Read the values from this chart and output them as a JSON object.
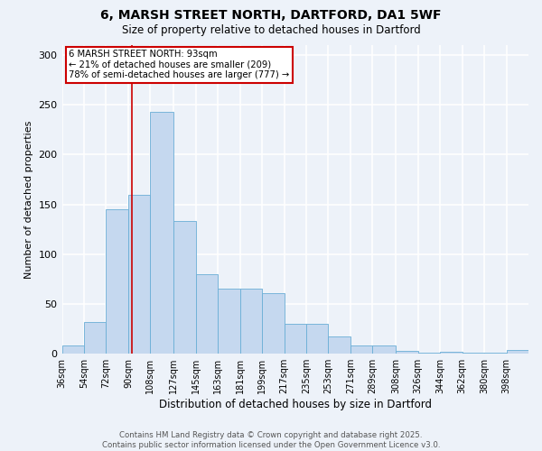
{
  "title_line1": "6, MARSH STREET NORTH, DARTFORD, DA1 5WF",
  "title_line2": "Size of property relative to detached houses in Dartford",
  "xlabel": "Distribution of detached houses by size in Dartford",
  "ylabel": "Number of detached properties",
  "bin_edges": [
    36,
    54,
    72,
    90,
    108,
    127,
    145,
    163,
    181,
    199,
    217,
    235,
    253,
    271,
    289,
    308,
    326,
    344,
    362,
    380,
    398,
    416
  ],
  "bar_heights": [
    8,
    32,
    145,
    160,
    243,
    133,
    80,
    65,
    65,
    61,
    30,
    30,
    17,
    8,
    8,
    3,
    1,
    2,
    1,
    1,
    4
  ],
  "bar_color": "#c5d8ef",
  "bar_edge_color": "#6aaed6",
  "property_size": 93,
  "vline_color": "#cc0000",
  "annotation_text": "6 MARSH STREET NORTH: 93sqm\n← 21% of detached houses are smaller (209)\n78% of semi-detached houses are larger (777) →",
  "annotation_box_color": "#ffffff",
  "annotation_box_edge": "#cc0000",
  "ylim": [
    0,
    310
  ],
  "yticks": [
    0,
    50,
    100,
    150,
    200,
    250,
    300
  ],
  "background_color": "#edf2f9",
  "grid_color": "#ffffff",
  "tick_label_bins": [
    36,
    54,
    72,
    90,
    108,
    127,
    145,
    163,
    181,
    199,
    217,
    235,
    253,
    271,
    289,
    308,
    326,
    344,
    362,
    380,
    398
  ],
  "footnote": "Contains HM Land Registry data © Crown copyright and database right 2025.\nContains public sector information licensed under the Open Government Licence v3.0."
}
